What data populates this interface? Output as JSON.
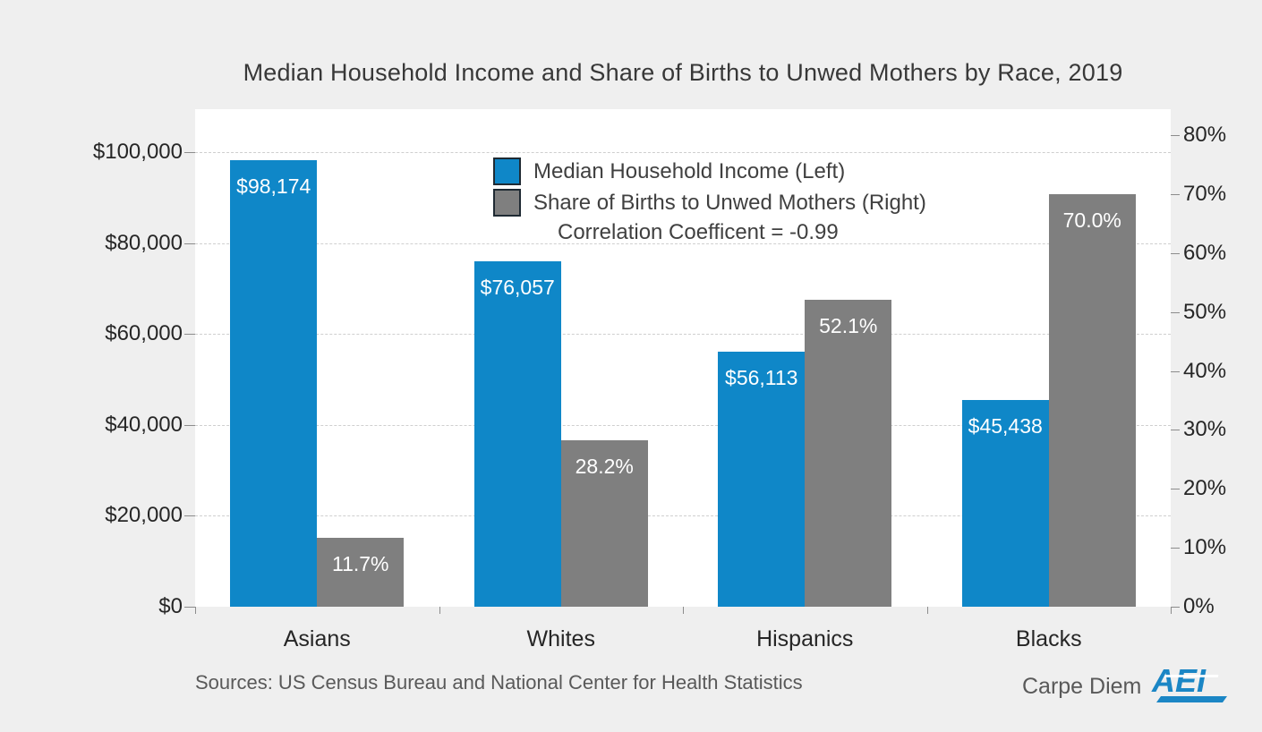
{
  "title": "Median Household Income and Share of Births to Unwed Mothers by Race, 2019",
  "chart_data": {
    "type": "bar",
    "categories": [
      "Asians",
      "Whites",
      "Hispanics",
      "Blacks"
    ],
    "series": [
      {
        "name": "Median Household Income (Left)",
        "axis": "left",
        "values": [
          98174,
          76057,
          56113,
          45438
        ],
        "labels": [
          "$98,174",
          "$76,057",
          "$56,113",
          "$45,438"
        ]
      },
      {
        "name": "Share of Births to Unwed Mothers (Right)",
        "axis": "right",
        "values": [
          11.7,
          28.2,
          52.1,
          70.0
        ],
        "labels": [
          "11.7%",
          "28.2%",
          "52.1%",
          "70.0%"
        ]
      }
    ],
    "left_axis": {
      "min": 0,
      "max": 100000,
      "ticks": [
        "$0",
        "$20,000",
        "$40,000",
        "$60,000",
        "$80,000",
        "$100,000"
      ]
    },
    "right_axis": {
      "min": 0,
      "max": 80,
      "ticks": [
        "0%",
        "10%",
        "20%",
        "30%",
        "40%",
        "50%",
        "60%",
        "70%",
        "80%"
      ]
    },
    "grid": "horizontal-dashed",
    "legend_position": "inside-top-center",
    "annotation": "Correlation Coefficent = -0.99"
  },
  "legend": {
    "items": [
      {
        "label": "Median Household Income (Left)",
        "color": "#0f87c8"
      },
      {
        "label": "Share of Births to Unwed Mothers (Right)",
        "color": "#7f7f7f"
      }
    ],
    "annotation": "Correlation Coefficent = -0.99"
  },
  "footer": {
    "sources": "Sources: US Census Bureau and National Center for Health Statistics",
    "logo_text": "Carpe Diem",
    "logo_mark": "AEI"
  },
  "colors": {
    "income_blue": "#0f87c8",
    "share_gray": "#7f7f7f",
    "background": "#efefef",
    "plot_background": "#ffffff",
    "gridline": "#cfcfcf",
    "logo_blue": "#1b86c5"
  }
}
